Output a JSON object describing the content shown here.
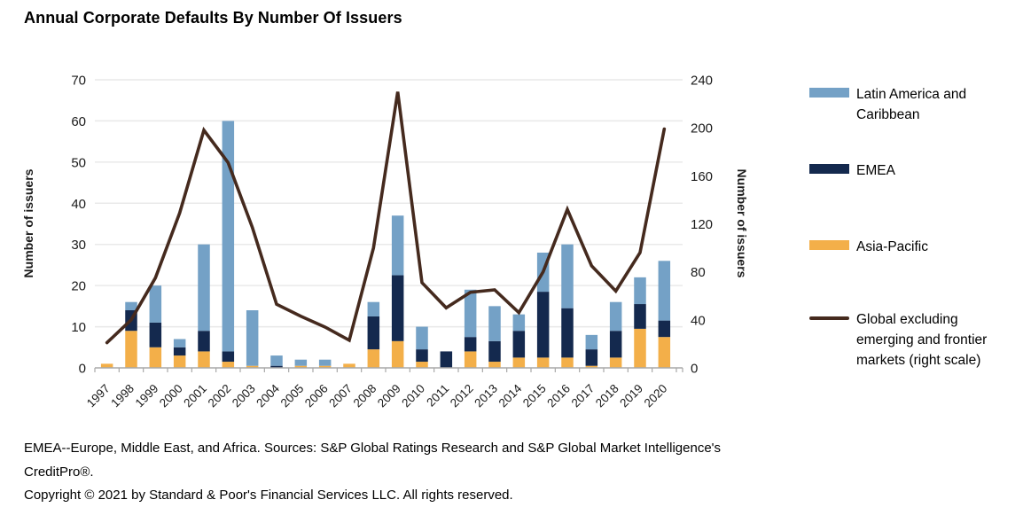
{
  "chart_data": {
    "type": "bar",
    "subtype": "stacked-bars-with-line-overlay",
    "title": "Annual Corporate Defaults By Number Of Issuers",
    "categories": [
      "1997",
      "1998",
      "1999",
      "2000",
      "2001",
      "2002",
      "2003",
      "2004",
      "2005",
      "2006",
      "2007",
      "2008",
      "2009",
      "2010",
      "2011",
      "2012",
      "2013",
      "2014",
      "2015",
      "2016",
      "2017",
      "2018",
      "2019",
      "2020"
    ],
    "bar_series": [
      {
        "name": "Asia-Pacific",
        "color": "#F3AF49",
        "values": [
          1,
          9,
          5,
          3,
          4,
          1.5,
          0.5,
          0,
          0.5,
          0.5,
          1,
          4.5,
          6.5,
          1.5,
          0,
          4,
          1.5,
          2.5,
          2.5,
          2.5,
          0.5,
          2.5,
          9.5,
          7.5
        ]
      },
      {
        "name": "EMEA",
        "color": "#14294E",
        "values": [
          0,
          5,
          6,
          2,
          5,
          2.5,
          0,
          0.5,
          0,
          0,
          0,
          8,
          16,
          3,
          4,
          3.5,
          5,
          6.5,
          16,
          12,
          4,
          6.5,
          6,
          4
        ]
      },
      {
        "name": "Latin America and Caribbean",
        "color": "#74A1C6",
        "values": [
          0,
          2,
          9,
          2,
          21,
          56,
          13.5,
          2.5,
          1.5,
          1.5,
          0,
          3.5,
          14.5,
          5.5,
          0,
          11.5,
          8.5,
          4,
          9.5,
          15.5,
          3.5,
          7,
          6.5,
          14.5
        ]
      }
    ],
    "bar_totals": [
      1,
      16,
      20,
      7,
      30,
      60,
      14,
      3,
      2,
      2,
      1,
      16,
      37,
      10,
      4,
      19,
      15,
      13,
      28,
      30,
      8,
      16,
      22,
      26
    ],
    "line_series": {
      "name": "Global excluding emerging and frontier markets (right scale)",
      "color": "#452A1E",
      "axis": "right",
      "values": [
        21,
        40,
        75,
        129,
        198,
        171,
        117,
        53,
        43,
        34,
        23,
        100,
        230,
        71,
        50,
        63,
        65,
        46,
        80,
        132,
        85,
        64,
        96,
        199
      ]
    },
    "left_axis": {
      "label": "Number of issuers",
      "min": 0,
      "max": 70,
      "ticks": [
        0,
        10,
        20,
        30,
        40,
        50,
        60,
        70
      ]
    },
    "right_axis": {
      "label": "Number of issuers",
      "min": 0,
      "max": 240,
      "ticks": [
        0,
        40,
        80,
        120,
        160,
        200,
        240
      ]
    },
    "grid": true,
    "legend_position": "right",
    "colors": {
      "grid": "#E9E9E9",
      "axis": "#A8A8A8",
      "tick_text": "#1a1a1a"
    }
  },
  "legend": {
    "items": [
      {
        "label": "Latin America and Caribbean",
        "color": "#74A1C6",
        "type": "box"
      },
      {
        "label": "EMEA",
        "color": "#14294E",
        "type": "box"
      },
      {
        "label": "Asia-Pacific",
        "color": "#F3AF49",
        "type": "box"
      },
      {
        "label": "Global excluding emerging and frontier markets (right scale)",
        "color": "#452A1E",
        "type": "line"
      }
    ]
  },
  "footer": {
    "source_note": "EMEA--Europe, Middle East, and Africa. Sources: S&P Global Ratings Research and S&P Global Market Intelligence's CreditPro®.",
    "copyright": "Copyright © 2021 by Standard & Poor's Financial Services LLC. All rights reserved."
  }
}
